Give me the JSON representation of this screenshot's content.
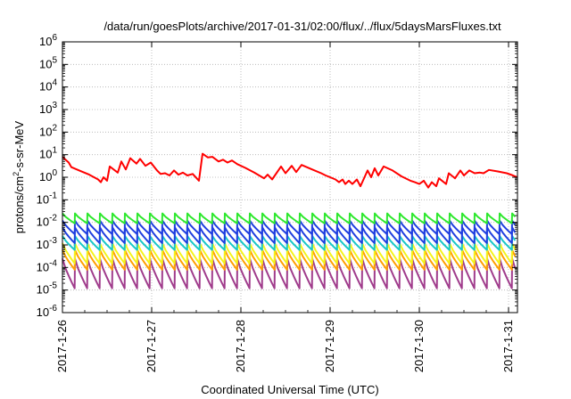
{
  "chart_data": {
    "type": "line",
    "title": "/data/run/goesPlots/archive/2017-01-31/02:00/flux/../flux/5daysMarsFluxes.txt",
    "xlabel": "Coordinated Universal Time (UTC)",
    "ylabel": {
      "pre": "protons/cm",
      "sup": "2",
      "post": "-s-sr-MeV"
    },
    "y_scale": "log",
    "ylim_exponents": [
      -6,
      6
    ],
    "xlim_days": [
      0,
      5.1
    ],
    "x_ticks": [
      "2017-1-26",
      "2017-1-27",
      "2017-1-28",
      "2017-1-29",
      "2017-1-30",
      "2017-1-31"
    ],
    "grid": true,
    "legend": "none",
    "colors": {
      "red": "#ff0000",
      "green": "#2ee82e",
      "blue": "#1f3fe0",
      "cyan": "#18c8c8",
      "yellow": "#f4f41c",
      "orange": "#ffa000",
      "purple": "#a03c8c"
    },
    "series": [
      {
        "color": "red",
        "points": [
          [
            0.0,
            8.0
          ],
          [
            0.07,
            4.5
          ],
          [
            0.1,
            2.8
          ],
          [
            0.2,
            1.9
          ],
          [
            0.3,
            1.3
          ],
          [
            0.4,
            0.8
          ],
          [
            0.43,
            0.6
          ],
          [
            0.46,
            1.0
          ],
          [
            0.5,
            0.7
          ],
          [
            0.53,
            3.0
          ],
          [
            0.62,
            1.6
          ],
          [
            0.66,
            5.0
          ],
          [
            0.71,
            2.2
          ],
          [
            0.76,
            7.0
          ],
          [
            0.83,
            4.0
          ],
          [
            0.87,
            6.5
          ],
          [
            0.93,
            3.2
          ],
          [
            0.99,
            4.5
          ],
          [
            1.06,
            2.0
          ],
          [
            1.1,
            1.4
          ],
          [
            1.15,
            1.5
          ],
          [
            1.2,
            1.2
          ],
          [
            1.25,
            2.0
          ],
          [
            1.3,
            1.3
          ],
          [
            1.35,
            1.6
          ],
          [
            1.4,
            1.2
          ],
          [
            1.46,
            1.4
          ],
          [
            1.53,
            0.7
          ],
          [
            1.57,
            11.0
          ],
          [
            1.63,
            7.5
          ],
          [
            1.68,
            8.0
          ],
          [
            1.75,
            5.0
          ],
          [
            1.8,
            6.0
          ],
          [
            1.85,
            4.5
          ],
          [
            1.9,
            5.5
          ],
          [
            1.96,
            3.8
          ],
          [
            2.05,
            2.6
          ],
          [
            2.15,
            1.6
          ],
          [
            2.26,
            0.9
          ],
          [
            2.3,
            1.3
          ],
          [
            2.35,
            0.8
          ],
          [
            2.45,
            3.0
          ],
          [
            2.5,
            1.5
          ],
          [
            2.57,
            3.2
          ],
          [
            2.62,
            1.7
          ],
          [
            2.68,
            3.5
          ],
          [
            2.8,
            2.2
          ],
          [
            2.9,
            1.5
          ],
          [
            2.95,
            1.2
          ],
          [
            3.0,
            1.0
          ],
          [
            3.06,
            0.8
          ],
          [
            3.1,
            0.6
          ],
          [
            3.14,
            0.8
          ],
          [
            3.17,
            0.5
          ],
          [
            3.21,
            0.7
          ],
          [
            3.25,
            0.5
          ],
          [
            3.3,
            0.8
          ],
          [
            3.34,
            0.4
          ],
          [
            3.42,
            2.0
          ],
          [
            3.46,
            1.0
          ],
          [
            3.5,
            2.5
          ],
          [
            3.54,
            1.2
          ],
          [
            3.6,
            3.0
          ],
          [
            3.7,
            2.0
          ],
          [
            3.8,
            1.1
          ],
          [
            3.9,
            0.7
          ],
          [
            3.95,
            0.6
          ],
          [
            4.0,
            0.5
          ],
          [
            4.05,
            0.7
          ],
          [
            4.1,
            0.35
          ],
          [
            4.14,
            0.6
          ],
          [
            4.19,
            0.4
          ],
          [
            4.22,
            0.9
          ],
          [
            4.3,
            0.5
          ],
          [
            4.33,
            1.5
          ],
          [
            4.4,
            0.9
          ],
          [
            4.46,
            2.0
          ],
          [
            4.5,
            1.2
          ],
          [
            4.56,
            2.0
          ],
          [
            4.62,
            1.5
          ],
          [
            4.68,
            1.6
          ],
          [
            4.72,
            1.5
          ],
          [
            4.78,
            2.1
          ],
          [
            4.88,
            1.8
          ],
          [
            4.98,
            1.5
          ],
          [
            5.05,
            1.2
          ],
          [
            5.1,
            1.0
          ]
        ]
      },
      {
        "color": "green",
        "shape": "sawtooth",
        "period": 0.14,
        "high": 0.025,
        "low": 0.009
      },
      {
        "color": "blue",
        "shape": "sawtooth",
        "period": 0.14,
        "high": 0.012,
        "low": 0.003
      },
      {
        "color": "blue",
        "shape": "sawtooth",
        "period": 0.14,
        "high": 0.006,
        "low": 0.0012
      },
      {
        "color": "cyan",
        "shape": "sawtooth",
        "period": 0.14,
        "high": 0.0025,
        "low": 0.0006
      },
      {
        "color": "yellow",
        "shape": "sawtooth",
        "period": 0.14,
        "high": 0.0012,
        "low": 0.00015
      },
      {
        "color": "orange",
        "shape": "sawtooth",
        "period": 0.14,
        "high": 0.0006,
        "low": 8e-05
      },
      {
        "color": "purple",
        "shape": "sawtooth",
        "period": 0.14,
        "high": 0.00025,
        "low": 1.2e-05
      }
    ]
  }
}
